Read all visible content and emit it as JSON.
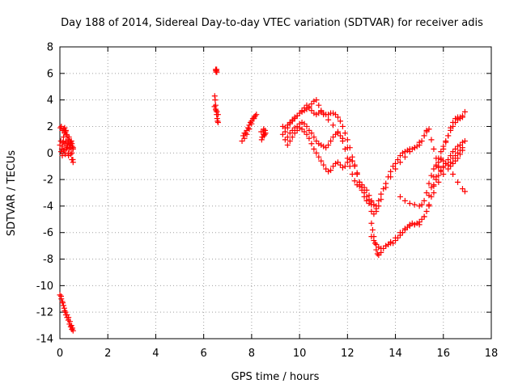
{
  "chart_data": {
    "type": "scatter",
    "title": "Day 188 of 2014, Sidereal Day-to-day VTEC variation (SDTVAR) for receiver adis",
    "xlabel": "GPS time / hours",
    "ylabel": "SDTVAR / TECUs",
    "xlim": [
      0,
      18
    ],
    "ylim": [
      -14,
      8
    ],
    "x_ticks": [
      0,
      2,
      4,
      6,
      8,
      10,
      12,
      14,
      16,
      18
    ],
    "y_ticks": [
      -14,
      -12,
      -10,
      -8,
      -6,
      -4,
      -2,
      0,
      2,
      4,
      6,
      8
    ],
    "grid": true,
    "marker": "+",
    "color": "#ff0000",
    "series": [
      {
        "name": "adis",
        "x": [
          0.0,
          0.04,
          0.08,
          0.12,
          0.16,
          0.2,
          0.24,
          0.28,
          0.32,
          0.36,
          0.4,
          0.44,
          0.48,
          0.52,
          0.55,
          0.02,
          0.06,
          0.1,
          0.14,
          0.18,
          0.22,
          0.26,
          0.3,
          0.34,
          0.38,
          0.42,
          0.46,
          0.5,
          0.54,
          0.05,
          0.1,
          0.15,
          0.2,
          0.25,
          0.3,
          0.35,
          0.4,
          0.45,
          0.5,
          0.55,
          0.1,
          0.15,
          0.2,
          0.25,
          0.3,
          0.35,
          0.4,
          0.45,
          0.5,
          0.55,
          0.0,
          0.06,
          0.12,
          0.18,
          0.24,
          0.3,
          0.36,
          0.42,
          0.48,
          0.52,
          6.5,
          6.51,
          6.52,
          6.53,
          6.54,
          6.55,
          6.46,
          6.48,
          6.5,
          6.52,
          6.54,
          6.56,
          6.58,
          6.6,
          6.45,
          6.5,
          6.55,
          6.6,
          7.6,
          7.7,
          7.8,
          7.9,
          8.0,
          8.1,
          8.2,
          7.65,
          7.75,
          7.85,
          7.95,
          8.05,
          8.15,
          7.7,
          7.8,
          7.9,
          8.0,
          8.1,
          8.4,
          8.45,
          8.5,
          8.55,
          8.42,
          8.48,
          8.52,
          8.58,
          8.44,
          8.5,
          8.56,
          9.3,
          9.4,
          9.5,
          9.6,
          9.7,
          9.8,
          9.9,
          10.0,
          10.1,
          10.2,
          10.3,
          10.4,
          10.5,
          10.6,
          10.7,
          10.8,
          10.9,
          11.0,
          11.2,
          11.4,
          11.6,
          11.8,
          12.0,
          12.2,
          12.4,
          12.6,
          12.8,
          13.0,
          13.1,
          13.2,
          13.3,
          13.4,
          13.6,
          13.8,
          14.0,
          14.2,
          14.4,
          14.6,
          14.8,
          15.0,
          15.2,
          15.3,
          9.3,
          9.4,
          9.5,
          9.6,
          9.7,
          9.8,
          9.9,
          10.0,
          10.1,
          10.2,
          10.3,
          10.4,
          10.5,
          10.6,
          10.7,
          10.8,
          10.9,
          11.0,
          11.1,
          11.2,
          11.3,
          11.4,
          11.5,
          11.6,
          11.7,
          11.8,
          11.9,
          12.0,
          12.1,
          12.2,
          12.3,
          12.4,
          12.5,
          12.6,
          12.7,
          12.8,
          12.9,
          13.0,
          13.1,
          13.2,
          9.4,
          9.5,
          9.6,
          9.7,
          9.8,
          9.9,
          10.0,
          10.1,
          10.2,
          10.3,
          10.4,
          10.5,
          10.6,
          10.7,
          10.8,
          10.9,
          11.0,
          11.1,
          11.2,
          11.3,
          11.4,
          11.5,
          11.6,
          11.7,
          11.8,
          11.9,
          12.0,
          12.1,
          12.2,
          12.3,
          12.4,
          12.5,
          12.6,
          12.7,
          12.8,
          12.9,
          13.0,
          13.1,
          13.2,
          13.3,
          13.4,
          13.5,
          13.6,
          13.7,
          13.8,
          13.9,
          14.0,
          14.1,
          14.2,
          14.3,
          14.4,
          14.5,
          14.6,
          14.7,
          14.8,
          14.9,
          15.0,
          15.1,
          15.2,
          15.3,
          15.4,
          15.5,
          15.6,
          15.7,
          15.8,
          15.9,
          16.0,
          16.1,
          16.2,
          16.3,
          16.4,
          16.5,
          16.6,
          16.7,
          16.8,
          9.5,
          9.6,
          9.7,
          9.8,
          9.9,
          10.0,
          10.1,
          10.2,
          10.3,
          10.4,
          10.5,
          10.6,
          10.7,
          10.8,
          10.9,
          11.0,
          11.1,
          11.2,
          11.3,
          11.4,
          11.5,
          11.6,
          11.7,
          11.8,
          11.9,
          12.0,
          12.1,
          12.2,
          12.3,
          12.4,
          12.5,
          12.6,
          12.7,
          12.8,
          12.9,
          13.0,
          13.0,
          13.05,
          13.1,
          13.15,
          13.2,
          13.25,
          13.3,
          13.4,
          13.5,
          13.6,
          13.7,
          13.8,
          13.9,
          14.0,
          14.1,
          14.2,
          14.3,
          14.4,
          14.5,
          14.6,
          14.7,
          14.8,
          14.9,
          15.0,
          15.1,
          15.2,
          15.3,
          15.4,
          15.5,
          15.6,
          15.7,
          15.8,
          15.9,
          16.0,
          16.1,
          16.2,
          16.3,
          16.4,
          16.5,
          16.6,
          16.7,
          16.8,
          13.0,
          13.1,
          13.2,
          13.3,
          13.4,
          13.6,
          13.8,
          14.0,
          14.2,
          14.4,
          14.6,
          14.8,
          15.0,
          15.2,
          15.4,
          15.6,
          15.8,
          16.0,
          16.2,
          16.4,
          16.6,
          16.8,
          16.9,
          14.2,
          14.4,
          14.6,
          14.8,
          15.0,
          15.1,
          15.2,
          15.3,
          15.4,
          15.5,
          15.6,
          15.7,
          15.8,
          15.9,
          16.0,
          16.1,
          16.2,
          16.3,
          16.4,
          16.5,
          16.6,
          16.7,
          16.8,
          15.4,
          15.5,
          15.6,
          15.7,
          15.8,
          15.9,
          16.0,
          16.1,
          16.2,
          16.3,
          16.4,
          16.5,
          16.6,
          16.7,
          16.8,
          16.9,
          15.6,
          15.7,
          15.8,
          15.9,
          16.0,
          16.1,
          16.2,
          16.3,
          16.4,
          16.5,
          16.6,
          16.7,
          16.8,
          16.9,
          0.05,
          0.1,
          0.15,
          0.2,
          0.25,
          0.3,
          0.35,
          0.4,
          0.45,
          0.5,
          0.55
        ],
        "y": [
          0.6,
          0.9,
          0.3,
          0.8,
          1.8,
          1.9,
          1.6,
          1.4,
          0.5,
          -0.2,
          0.4,
          0.7,
          0.9,
          0.5,
          0.3,
          1.9,
          2.0,
          1.7,
          0.8,
          0.2,
          -0.1,
          0.3,
          0.6,
          1.0,
          1.2,
          0.9,
          0.4,
          0.0,
          -0.5,
          0.1,
          0.5,
          1.2,
          1.5,
          1.7,
          1.3,
          0.8,
          0.3,
          -0.1,
          -0.5,
          -0.7,
          -0.2,
          0.2,
          0.7,
          0.9,
          0.4,
          0.0,
          0.6,
          0.8,
          0.7,
          0.4,
          -10.7,
          -11.0,
          -11.3,
          -11.7,
          -12.0,
          -12.2,
          -12.4,
          -12.7,
          -13.0,
          -13.2,
          6.3,
          6.2,
          6.1,
          6.2,
          6.3,
          6.1,
          4.3,
          4.0,
          3.6,
          3.2,
          2.9,
          2.6,
          2.4,
          2.3,
          3.5,
          3.3,
          3.1,
          2.9,
          0.9,
          1.1,
          1.4,
          1.8,
          2.2,
          2.6,
          2.9,
          1.3,
          1.5,
          1.9,
          2.3,
          2.6,
          2.8,
          1.5,
          1.7,
          2.1,
          2.4,
          2.7,
          1.6,
          1.2,
          1.8,
          1.4,
          1.0,
          1.6,
          1.3,
          1.5,
          1.2,
          1.4,
          1.7,
          2.0,
          1.9,
          2.1,
          2.3,
          2.5,
          2.7,
          2.8,
          3.0,
          3.1,
          3.2,
          3.3,
          3.5,
          3.7,
          3.9,
          4.0,
          3.6,
          3.2,
          2.9,
          2.5,
          2.1,
          1.6,
          1.1,
          0.4,
          -0.6,
          -1.6,
          -2.6,
          -3.6,
          -4.4,
          -4.6,
          -4.4,
          -4.0,
          -3.5,
          -2.6,
          -1.8,
          -1.2,
          -0.7,
          -0.3,
          0.1,
          0.4,
          0.8,
          1.3,
          1.7,
          1.4,
          1.6,
          1.9,
          2.2,
          2.4,
          2.6,
          2.8,
          3.0,
          3.2,
          3.4,
          3.6,
          3.4,
          3.2,
          3.0,
          2.9,
          3.0,
          3.1,
          3.0,
          2.9,
          2.9,
          3.0,
          3.0,
          2.9,
          2.7,
          2.4,
          2.0,
          1.5,
          1.0,
          0.4,
          -0.3,
          -1.0,
          -1.6,
          -2.2,
          -2.6,
          -3.0,
          -3.3,
          -3.5,
          -3.7,
          -3.9,
          -4.2,
          1.0,
          1.2,
          1.5,
          1.7,
          1.9,
          2.0,
          2.2,
          2.3,
          2.2,
          2.0,
          1.7,
          1.5,
          1.2,
          0.9,
          0.7,
          0.6,
          0.5,
          0.4,
          0.6,
          0.9,
          1.2,
          1.4,
          1.5,
          1.3,
          0.9,
          0.3,
          -0.4,
          -1.0,
          -1.6,
          -2.1,
          -2.4,
          -2.5,
          -2.4,
          -2.6,
          -2.8,
          -3.2,
          -3.6,
          -3.9,
          -4.0,
          -3.6,
          -3.1,
          -2.7,
          -2.3,
          -1.8,
          -1.4,
          -1.0,
          -0.8,
          -0.5,
          -0.2,
          0.0,
          0.1,
          0.2,
          0.3,
          0.3,
          0.4,
          0.5,
          0.6,
          0.9,
          1.3,
          1.6,
          1.8,
          1.0,
          0.3,
          -0.4,
          -1.0,
          -1.3,
          -1.0,
          -0.8,
          -0.9,
          -1.0,
          -0.8,
          -0.6,
          -0.4,
          -0.1,
          0.2,
          0.6,
          0.9,
          1.2,
          1.5,
          1.7,
          1.9,
          1.8,
          1.6,
          1.4,
          1.1,
          0.7,
          0.3,
          0.0,
          -0.3,
          -0.6,
          -0.9,
          -1.2,
          -1.4,
          -1.3,
          -1.0,
          -0.8,
          -0.7,
          -0.9,
          -1.1,
          -1.0,
          -0.7,
          -0.5,
          -0.6,
          -0.9,
          -1.5,
          -2.2,
          -2.8,
          -3.3,
          -3.6,
          -3.8,
          -3.9,
          -5.3,
          -5.8,
          -6.3,
          -6.8,
          -7.3,
          -7.6,
          -7.7,
          -7.5,
          -7.2,
          -7.0,
          -6.9,
          -6.8,
          -6.8,
          -6.6,
          -6.4,
          -6.2,
          -6.0,
          -5.8,
          -5.6,
          -5.4,
          -5.3,
          -5.4,
          -5.3,
          -5.2,
          -5.0,
          -4.8,
          -4.4,
          -4.0,
          -3.3,
          -2.5,
          -1.8,
          -1.1,
          -0.4,
          0.3,
          0.8,
          1.3,
          1.9,
          2.3,
          2.6,
          2.7,
          2.6,
          2.8,
          -6.3,
          -6.6,
          -6.9,
          -7.1,
          -7.2,
          -7.0,
          -6.7,
          -6.4,
          -6.0,
          -5.7,
          -5.5,
          -5.4,
          -5.4,
          -4.8,
          -3.9,
          -3.0,
          -2.2,
          -1.6,
          -1.2,
          -1.6,
          -2.2,
          -2.7,
          -2.9,
          -3.3,
          -3.6,
          -3.8,
          -3.9,
          -4.0,
          -3.9,
          -3.6,
          -3.0,
          -2.3,
          -1.7,
          -1.2,
          -0.9,
          -0.7,
          -0.5,
          -0.6,
          -0.8,
          -0.9,
          -0.7,
          -0.4,
          -0.2,
          0.0,
          0.2,
          0.4,
          -3.2,
          -2.6,
          -1.8,
          -1.0,
          -0.4,
          0.1,
          0.5,
          0.9,
          1.3,
          1.7,
          2.0,
          2.3,
          2.5,
          2.7,
          2.7,
          3.1,
          -2.4,
          -2.0,
          -1.7,
          -1.4,
          -1.1,
          -0.8,
          -0.5,
          -0.2,
          0.1,
          0.3,
          0.5,
          0.6,
          0.8,
          0.9,
          -10.8,
          -11.2,
          -11.5,
          -11.9,
          -12.2,
          -12.4,
          -12.6,
          -12.9,
          -13.1,
          -13.3,
          -13.4
        ]
      }
    ]
  }
}
